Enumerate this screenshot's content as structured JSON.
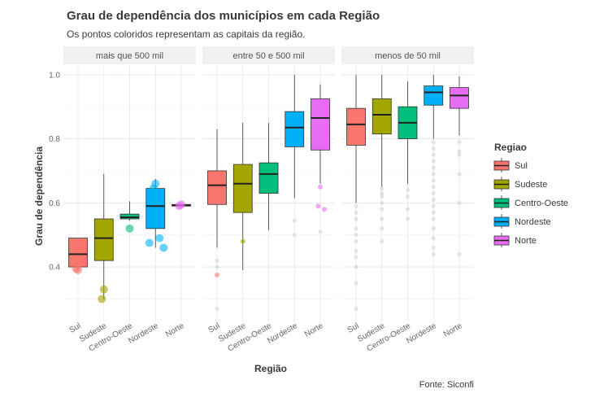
{
  "chart_data": {
    "type": "box",
    "title": "Grau de dependência dos municípios em cada Região",
    "subtitle": "Os pontos coloridos representam as capitais da região.",
    "caption": "Fonte: Siconfi",
    "xlabel": "Região",
    "ylabel": "Grau de dependência",
    "ylim": [
      0.23,
      1.03
    ],
    "yticks": [
      0.4,
      0.6,
      0.8,
      1.0
    ],
    "ytick_labels": [
      "0.4",
      "0.6",
      "0.8",
      "1.0"
    ],
    "grid": true,
    "legend": {
      "title": "Regiao",
      "placement": "right",
      "entries": [
        "Sul",
        "Sudeste",
        "Centro-Oeste",
        "Nordeste",
        "Norte"
      ]
    },
    "categories": [
      "Sul",
      "Sudeste",
      "Centro-Oeste",
      "Nordeste",
      "Norte"
    ],
    "colors": {
      "Sul": "#F8766D",
      "Sudeste": "#A3A500",
      "Centro-Oeste": "#00BF7D",
      "Nordeste": "#00B0F6",
      "Norte": "#E76BF3"
    },
    "panels": [
      {
        "label": "mais que 500 mil",
        "boxes": [
          {
            "category": "Sul",
            "low": 0.39,
            "q1": 0.4,
            "median": 0.44,
            "q3": 0.49,
            "high": 0.49,
            "outliers": []
          },
          {
            "category": "Sudeste",
            "low": 0.3,
            "q1": 0.42,
            "median": 0.49,
            "q3": 0.55,
            "high": 0.69,
            "outliers": []
          },
          {
            "category": "Centro-Oeste",
            "low": 0.545,
            "q1": 0.55,
            "median": 0.555,
            "q3": 0.565,
            "high": 0.605,
            "outliers": []
          },
          {
            "category": "Nordeste",
            "low": 0.46,
            "q1": 0.52,
            "median": 0.59,
            "q3": 0.645,
            "high": 0.675,
            "outliers": []
          },
          {
            "category": "Norte",
            "low": 0.59,
            "q1": 0.59,
            "median": 0.593,
            "q3": 0.595,
            "high": 0.595,
            "outliers": []
          }
        ],
        "capitals": [
          {
            "category": "Sul",
            "values": [
              0.39,
              0.395
            ]
          },
          {
            "category": "Sudeste",
            "values": [
              0.33,
              0.3
            ]
          },
          {
            "category": "Centro-Oeste",
            "values": [
              0.52
            ]
          },
          {
            "category": "Nordeste",
            "values": [
              0.66,
              0.645,
              0.49,
              0.475,
              0.46
            ]
          },
          {
            "category": "Norte",
            "values": [
              0.595,
              0.59
            ]
          }
        ]
      },
      {
        "label": "entre 50 e 500 mil",
        "boxes": [
          {
            "category": "Sul",
            "low": 0.46,
            "q1": 0.595,
            "median": 0.655,
            "q3": 0.7,
            "high": 0.83,
            "outliers": [
              0.42,
              0.4,
              0.27
            ]
          },
          {
            "category": "Sudeste",
            "low": 0.39,
            "q1": 0.57,
            "median": 0.66,
            "q3": 0.72,
            "high": 0.85,
            "outliers": []
          },
          {
            "category": "Centro-Oeste",
            "low": 0.515,
            "q1": 0.63,
            "median": 0.69,
            "q3": 0.725,
            "high": 0.85,
            "outliers": []
          },
          {
            "category": "Nordeste",
            "low": 0.615,
            "q1": 0.775,
            "median": 0.835,
            "q3": 0.885,
            "high": 1.0,
            "outliers": [
              0.545,
              0.5
            ]
          },
          {
            "category": "Norte",
            "low": 0.66,
            "q1": 0.765,
            "median": 0.865,
            "q3": 0.925,
            "high": 0.97,
            "outliers": [
              0.51
            ]
          }
        ],
        "capitals": [
          {
            "category": "Sul",
            "values": [
              0.375
            ]
          },
          {
            "category": "Sudeste",
            "values": [
              0.48
            ]
          },
          {
            "category": "Norte",
            "values": [
              0.65,
              0.59,
              0.58
            ]
          }
        ]
      },
      {
        "label": "menos de 50 mil",
        "boxes": [
          {
            "category": "Sul",
            "low": 0.6,
            "q1": 0.78,
            "median": 0.845,
            "q3": 0.895,
            "high": 1.0,
            "outliers": [
              0.59,
              0.57,
              0.55,
              0.52,
              0.5,
              0.48,
              0.45,
              0.43,
              0.4,
              0.35,
              0.27
            ]
          },
          {
            "category": "Sudeste",
            "low": 0.65,
            "q1": 0.815,
            "median": 0.875,
            "q3": 0.925,
            "high": 1.0,
            "outliers": [
              0.645,
              0.63,
              0.62,
              0.6,
              0.58,
              0.55,
              0.52,
              0.48
            ]
          },
          {
            "category": "Centro-Oeste",
            "low": 0.66,
            "q1": 0.8,
            "median": 0.85,
            "q3": 0.9,
            "high": 0.98,
            "outliers": [
              0.64,
              0.62,
              0.58,
              0.55
            ]
          },
          {
            "category": "Nordeste",
            "low": 0.8,
            "q1": 0.905,
            "median": 0.945,
            "q3": 0.965,
            "high": 1.0,
            "outliers": [
              0.79,
              0.77,
              0.75,
              0.73,
              0.71,
              0.69,
              0.67,
              0.65,
              0.63,
              0.61,
              0.59,
              0.57,
              0.55,
              0.52,
              0.49,
              0.46,
              0.44
            ]
          },
          {
            "category": "Norte",
            "low": 0.81,
            "q1": 0.895,
            "median": 0.935,
            "q3": 0.96,
            "high": 0.995,
            "outliers": [
              0.79,
              0.76,
              0.75,
              0.69,
              0.6,
              0.44
            ]
          }
        ],
        "capitals": []
      }
    ]
  }
}
